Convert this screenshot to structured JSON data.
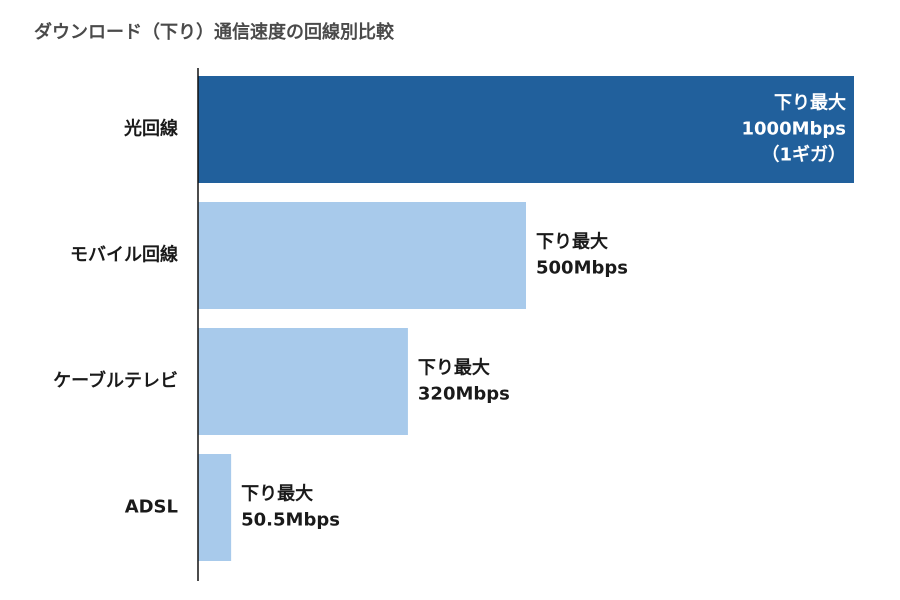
{
  "chart_data": {
    "type": "bar",
    "orientation": "horizontal",
    "title": "ダウンロード（下り）通信速度の回線別比較",
    "xlabel": "",
    "ylabel": "",
    "unit": "Mbps",
    "xlim": [
      0,
      1000
    ],
    "grid": false,
    "legend": "none",
    "categories": [
      "光回線",
      "モバイル回線",
      "ケーブルテレビ",
      "ADSL"
    ],
    "values": [
      1000,
      500,
      320,
      50.5
    ],
    "data_labels": [
      [
        "下り最大",
        "1000Mbps",
        "（1ギガ）"
      ],
      [
        "下り最大",
        "500Mbps"
      ],
      [
        "下り最大",
        "320Mbps"
      ],
      [
        "下り最大",
        "50.5Mbps"
      ]
    ],
    "highlight_index": 0,
    "colors": {
      "highlight": "#21609c",
      "default": "#a8caeb",
      "axis": "#111111",
      "label_on_dark": "#ffffff",
      "label_on_light": "#1a1a1a"
    }
  }
}
